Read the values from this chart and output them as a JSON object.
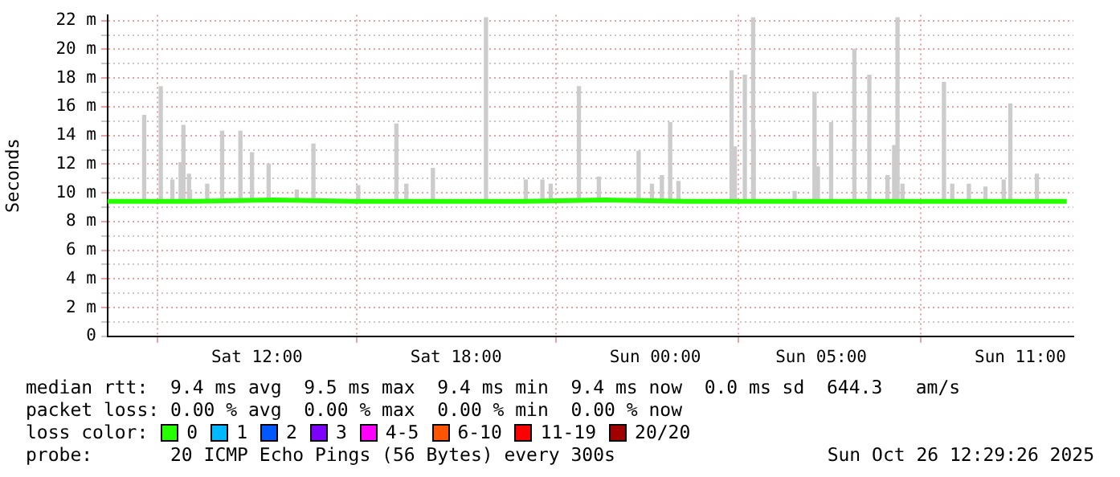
{
  "chart_data": {
    "type": "line",
    "ylabel": "Seconds",
    "xlim": [
      "2025-10-25T07:30",
      "2025-10-26T12:36"
    ],
    "ylim": [
      0,
      22.4
    ],
    "xticks": [
      {
        "value": "2025-10-25T12:00",
        "label": "Sat 12:00"
      },
      {
        "value": "2025-10-25T18:00",
        "label": "Sat 18:00"
      },
      {
        "value": "2025-10-26T00:00",
        "label": "Sun 00:00"
      },
      {
        "value": "2025-10-26T05:00",
        "label": "Sun 05:00"
      },
      {
        "value": "2025-10-26T11:00",
        "label": "Sun 11:00"
      }
    ],
    "yticks": [
      0,
      {
        "value": 1,
        "label": null
      },
      {
        "value": 2,
        "label": "2 m"
      },
      {
        "value": 3,
        "label": null
      },
      {
        "value": 4,
        "label": "4 m"
      },
      {
        "value": 5,
        "label": null
      },
      {
        "value": 6,
        "label": "6 m"
      },
      {
        "value": 7,
        "label": null
      },
      {
        "value": 8,
        "label": "8 m"
      },
      {
        "value": 9,
        "label": null
      },
      {
        "value": 10,
        "label": "10 m"
      },
      {
        "value": 11,
        "label": null
      },
      {
        "value": 12,
        "label": "12 m"
      },
      {
        "value": 13,
        "label": null
      },
      {
        "value": 14,
        "label": "14 m"
      },
      {
        "value": 15,
        "label": null
      },
      {
        "value": 16,
        "label": "16 m"
      },
      {
        "value": 17,
        "label": null
      },
      {
        "value": 18,
        "label": "18 m"
      },
      {
        "value": 19,
        "label": null
      },
      {
        "value": 20,
        "label": "20 m"
      },
      {
        "value": 21,
        "label": null
      },
      {
        "value": 22,
        "label": "22 m"
      }
    ],
    "grid": true,
    "legend": "bottom",
    "legend_title": "loss color:",
    "marker": "none",
    "series": [
      {
        "type": "bar",
        "color": "#cccccc",
        "x": [
          "2025-10-25T08:36",
          "2025-10-25T09:06",
          "2025-10-25T09:27",
          "2025-10-25T09:42",
          "2025-10-25T09:47",
          "2025-10-25T09:57",
          "2025-10-25T09:59",
          "2025-10-25T10:30",
          "2025-10-25T10:57",
          "2025-10-25T11:30",
          "2025-10-25T11:51",
          "2025-10-25T12:21",
          "2025-10-25T13:12",
          "2025-10-25T13:42",
          "2025-10-25T15:03",
          "2025-10-25T16:12",
          "2025-10-25T16:30",
          "2025-10-25T17:18",
          "2025-10-25T18:54",
          "2025-10-25T20:06",
          "2025-10-25T20:36",
          "2025-10-25T20:51",
          "2025-10-25T21:42",
          "2025-10-25T22:18",
          "2025-10-25T23:30",
          "2025-10-25T23:54",
          "2025-10-26T00:12",
          "2025-10-26T00:27",
          "2025-10-26T00:42",
          "2025-10-26T02:18",
          "2025-10-26T02:24",
          "2025-10-26T02:42",
          "2025-10-26T02:57",
          "2025-10-26T02:58",
          "2025-10-26T04:12",
          "2025-10-26T04:48",
          "2025-10-26T04:54",
          "2025-10-26T05:18",
          "2025-10-26T06:00",
          "2025-10-26T06:27",
          "2025-10-26T07:00",
          "2025-10-26T07:12",
          "2025-10-26T07:18",
          "2025-10-26T07:27",
          "2025-10-26T08:42",
          "2025-10-26T08:57",
          "2025-10-26T09:27",
          "2025-10-26T09:57",
          "2025-10-26T10:30",
          "2025-10-26T10:42",
          "2025-10-26T11:30"
        ],
        "base": [
          9.4,
          9.4,
          9.4,
          9.4,
          9.4,
          9.4,
          9.4,
          9.4,
          9.4,
          9.4,
          9.4,
          9.4,
          9.4,
          9.4,
          9.4,
          9.4,
          9.4,
          9.4,
          9.4,
          9.4,
          9.4,
          9.4,
          9.4,
          9.4,
          9.4,
          9.4,
          9.4,
          9.4,
          9.4,
          9.4,
          9.4,
          9.4,
          9.4,
          9.4,
          9.4,
          9.4,
          9.4,
          9.4,
          9.4,
          9.4,
          9.4,
          9.4,
          9.4,
          9.4,
          9.4,
          9.4,
          9.4,
          9.4,
          9.4,
          9.4,
          9.4
        ],
        "values": [
          6.0,
          8.0,
          1.5,
          2.7,
          5.3,
          1.9,
          0.8,
          1.2,
          4.9,
          4.9,
          3.4,
          2.6,
          0.8,
          4.0,
          1.1,
          5.4,
          1.2,
          2.3,
          12.8,
          1.5,
          1.5,
          1.2,
          8.0,
          1.7,
          3.5,
          1.2,
          1.8,
          5.5,
          1.4,
          9.1,
          3.8,
          8.8,
          12.8,
          5.0,
          0.7,
          7.6,
          2.4,
          5.5,
          10.6,
          8.8,
          1.8,
          3.9,
          12.8,
          1.2,
          8.3,
          1.2,
          1.2,
          1.0,
          1.5,
          6.8,
          1.9
        ]
      },
      {
        "name": "0",
        "color": "#26ff00",
        "x": [
          "2025-10-25T07:30",
          "2025-10-25T10:00",
          "2025-10-25T12:30",
          "2025-10-25T15:00",
          "2025-10-25T17:30",
          "2025-10-25T20:00",
          "2025-10-25T22:30",
          "2025-10-26T01:00",
          "2025-10-26T02:30",
          "2025-10-26T05:00",
          "2025-10-26T07:30",
          "2025-10-26T10:00",
          "2025-10-26T12:24"
        ],
        "values": [
          9.4,
          9.4,
          9.5,
          9.4,
          9.4,
          9.4,
          9.5,
          9.4,
          9.4,
          9.4,
          9.4,
          9.4,
          9.4
        ]
      },
      {
        "name": "1",
        "color": "#00b8ff"
      },
      {
        "name": "2",
        "color": "#0059ff"
      },
      {
        "name": "3",
        "color": "#7e00ff"
      },
      {
        "name": "4-5",
        "color": "#ff00ff"
      },
      {
        "name": "6-10",
        "color": "#ff5500"
      },
      {
        "name": "11-19",
        "color": "#ff0000"
      },
      {
        "name": "20/20",
        "color": "#a10000"
      }
    ],
    "annotations": [
      "median rtt:  9.4 ms avg  9.5 ms max  9.4 ms min  9.4 ms now  0.0 ms sd  644.3   am/s",
      "packet loss: 0.00 % avg  0.00 % max  0.00 % min  0.00 % now",
      "probe:       20 ICMP Echo Pings (56 Bytes) every 300s",
      "Sun Oct 26 12:29:26 2025"
    ]
  }
}
